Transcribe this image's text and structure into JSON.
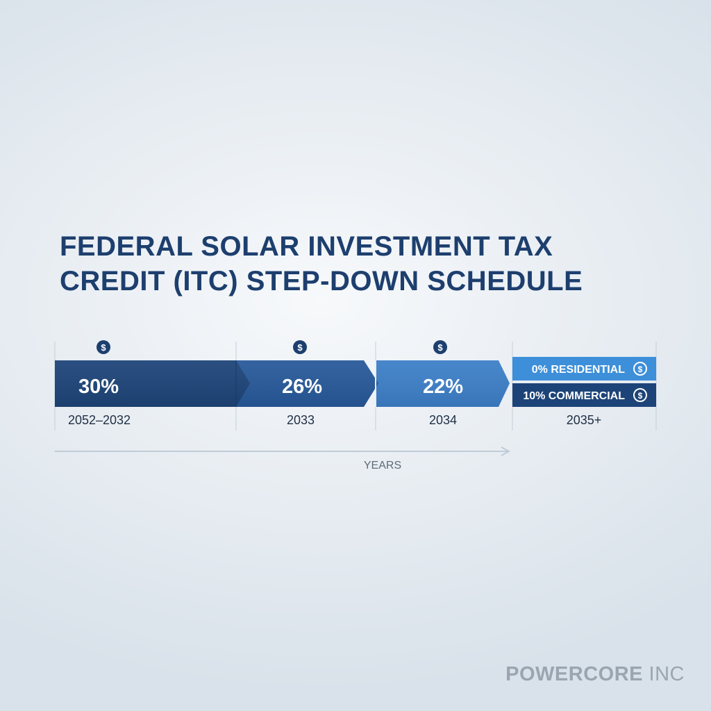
{
  "title": {
    "line1": "FEDERAL SOLAR INVESTMENT TAX",
    "line2": "CREDIT (ITC) STEP-DOWN SCHEDULE"
  },
  "schedule": {
    "steps": [
      {
        "rate_label": "30%",
        "period_label": "2052–2032",
        "icon": "dollar-coin-icon",
        "color": "#1d4478"
      },
      {
        "rate_label": "26%",
        "period_label": "2033",
        "icon": "dollar-coin-icon",
        "color": "#27599a"
      },
      {
        "rate_label": "22%",
        "period_label": "2034",
        "icon": "dollar-coin-icon",
        "color": "#3d7fc8"
      }
    ],
    "final": {
      "period_label": "2035+",
      "rows": [
        {
          "label": "0% RESIDENTIAL",
          "icon": "dollar-circle-icon",
          "color": "#3d8fd9"
        },
        {
          "label": "10% COMMERCIAL",
          "icon": "dollar-circle-icon",
          "color": "#1d4478"
        }
      ]
    },
    "axis_label": "YEARS",
    "colors": {
      "icon_fill": "#1d3f6e",
      "divider": "#c5ced8",
      "axis": "#c0cbd6",
      "period_text": "#1f2f44",
      "axis_text": "#5d6b7a"
    }
  },
  "brand": {
    "part1": "POWERCORE",
    "part2": "INC"
  }
}
